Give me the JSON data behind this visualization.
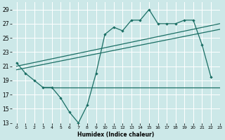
{
  "title": "",
  "xlabel": "Humidex (Indice chaleur)",
  "bg_color": "#cce8e8",
  "line_color": "#1a6e64",
  "grid_color": "#ffffff",
  "x_values": [
    0,
    1,
    2,
    3,
    4,
    5,
    6,
    7,
    8,
    9,
    10,
    11,
    12,
    13,
    14,
    15,
    16,
    17,
    18,
    19,
    20,
    21,
    22,
    23
  ],
  "main_line": [
    21.5,
    20.0,
    19.0,
    18.0,
    18.0,
    16.5,
    14.5,
    13.0,
    15.5,
    20.0,
    25.5,
    26.5,
    26.0,
    27.5,
    27.5,
    29.0,
    27.0,
    27.0,
    27.0,
    27.5,
    27.5,
    24.0,
    19.5,
    null
  ],
  "flat_line": [
    [
      3,
      18.0
    ],
    [
      23,
      18.0
    ]
  ],
  "trend_line1": [
    [
      0,
      21.0
    ],
    [
      23,
      27.0
    ]
  ],
  "trend_line2": [
    [
      0,
      20.5
    ],
    [
      23,
      26.2
    ]
  ],
  "ylim": [
    13,
    30
  ],
  "xlim": [
    -0.5,
    23
  ],
  "yticks": [
    13,
    15,
    17,
    19,
    21,
    23,
    25,
    27,
    29
  ],
  "xticks": [
    0,
    1,
    2,
    3,
    4,
    5,
    6,
    7,
    8,
    9,
    10,
    11,
    12,
    13,
    14,
    15,
    16,
    17,
    18,
    19,
    20,
    21,
    22,
    23
  ]
}
